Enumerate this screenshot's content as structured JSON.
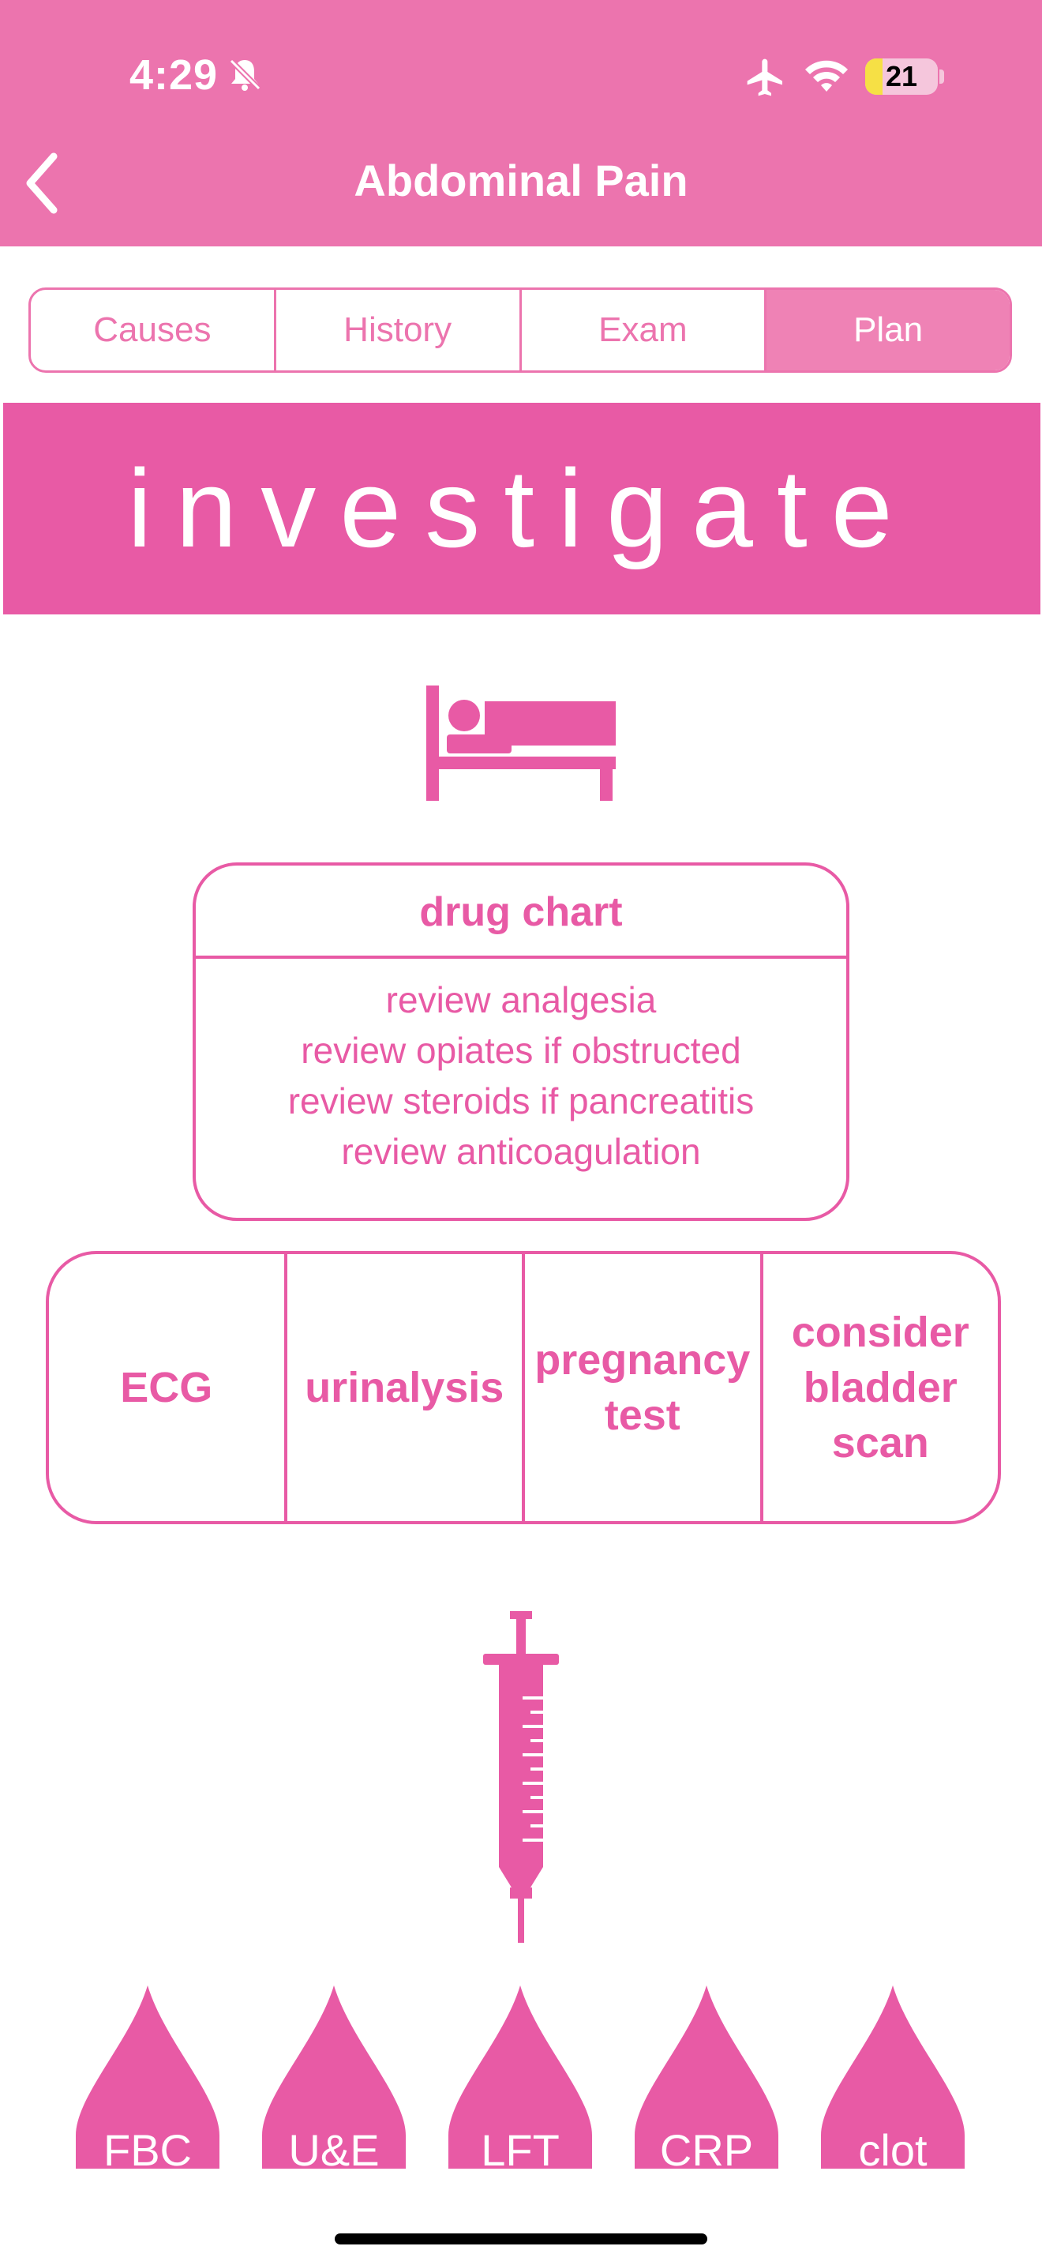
{
  "status_bar": {
    "time": "4:29",
    "battery": "21"
  },
  "header": {
    "title": "Abdominal Pain"
  },
  "tabs": [
    {
      "label": "Causes",
      "active": false
    },
    {
      "label": "History",
      "active": false
    },
    {
      "label": "Exam",
      "active": false
    },
    {
      "label": "Plan",
      "active": true
    }
  ],
  "banner": {
    "text": "investigate"
  },
  "drug_chart": {
    "title": "drug chart",
    "lines": [
      "review analgesia",
      "review opiates if obstructed",
      "review steroids if pancreatitis",
      "review anticoagulation"
    ]
  },
  "tests": [
    "ECG",
    "urinalysis",
    "pregnancy\ntest",
    "consider\nbladder\nscan"
  ],
  "bloods": [
    "FBC",
    "U&E",
    "LFT",
    "CRP",
    "clot"
  ],
  "colors": {
    "header": "#ec74ae",
    "accent": "#e85aa5",
    "tab_active": "#ef82b5"
  },
  "icons": [
    "bell-slash-icon",
    "airplane-icon",
    "wifi-icon",
    "back-chevron-icon",
    "bed-icon",
    "syringe-icon",
    "blood-drop-icon"
  ]
}
